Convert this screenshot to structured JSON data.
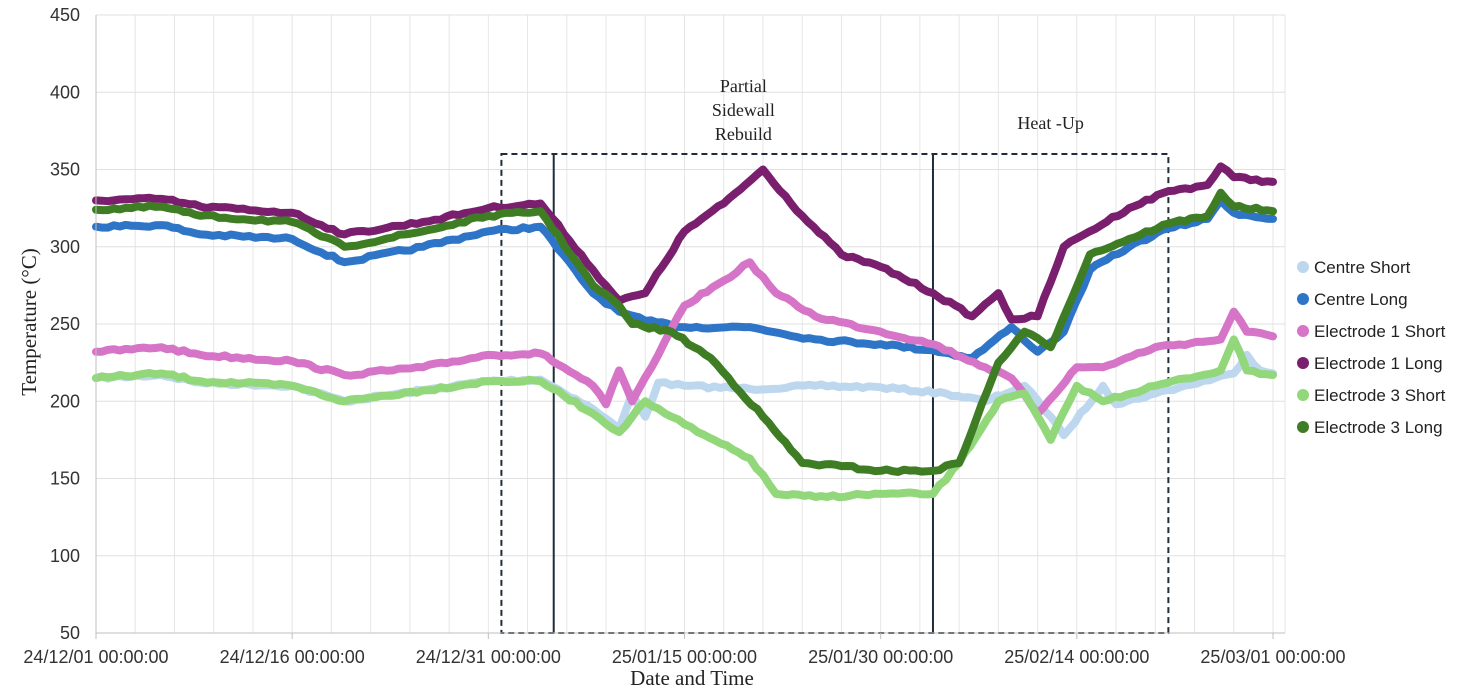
{
  "chart_data": {
    "type": "line",
    "title": "",
    "xlabel": "Date and Time",
    "ylabel": "Temperature (°C)",
    "ylim": [
      50,
      450
    ],
    "yticks": [
      50,
      100,
      150,
      200,
      250,
      300,
      350,
      400,
      450
    ],
    "xlim": [
      "2024-12-01",
      "2025-03-01"
    ],
    "xticks": [
      {
        "date": "2024-12-01",
        "label": "24/12/01 00:00:00"
      },
      {
        "date": "2024-12-16",
        "label": "24/12/16 00:00:00"
      },
      {
        "date": "2024-12-31",
        "label": "24/12/31 00:00:00"
      },
      {
        "date": "2025-01-15",
        "label": "25/01/15 00:00:00"
      },
      {
        "date": "2025-01-30",
        "label": "25/01/30 00:00:00"
      },
      {
        "date": "2025-02-14",
        "label": "25/02/14 00:00:00"
      },
      {
        "date": "2025-03-01",
        "label": "25/03/01 00:00:00"
      }
    ],
    "grid": true,
    "legend": "right",
    "colors": {
      "Centre Short": "#bdd7ee",
      "Centre Long": "#2e75c8",
      "Electrode 1 Short": "#d674c8",
      "Electrode 1 Long": "#7a1f6e",
      "Electrode 3 Short": "#92d77a",
      "Electrode 3 Long": "#3e7d24"
    },
    "annotations": [
      {
        "lines": [
          "Partial",
          "Sidewall",
          "Rebuild"
        ],
        "x_start": "2025-01-05",
        "x_end": "2025-02-03"
      },
      {
        "lines": [
          "Heat -Up"
        ],
        "x_start": "2025-02-03",
        "x_end": "2025-02-21"
      }
    ],
    "outer_box": {
      "x_start": "2025-01-01",
      "x_end": "2025-02-21",
      "y_range": [
        50,
        360
      ]
    },
    "series": [
      {
        "name": "Centre Short",
        "points": [
          [
            "2024-12-01",
            215
          ],
          [
            "2024-12-06",
            217
          ],
          [
            "2024-12-09",
            212
          ],
          [
            "2024-12-16",
            210
          ],
          [
            "2024-12-20",
            200
          ],
          [
            "2024-12-26",
            207
          ],
          [
            "2024-12-31",
            213
          ],
          [
            "2025-01-04",
            214
          ],
          [
            "2025-01-08",
            195
          ],
          [
            "2025-01-10",
            182
          ],
          [
            "2025-01-11",
            205
          ],
          [
            "2025-01-12",
            190
          ],
          [
            "2025-01-13",
            212
          ],
          [
            "2025-01-15",
            210
          ],
          [
            "2025-01-20",
            208
          ],
          [
            "2025-01-25",
            210
          ],
          [
            "2025-01-30",
            209
          ],
          [
            "2025-02-04",
            205
          ],
          [
            "2025-02-07",
            200
          ],
          [
            "2025-02-10",
            210
          ],
          [
            "2025-02-12",
            190
          ],
          [
            "2025-02-13",
            178
          ],
          [
            "2025-02-16",
            210
          ],
          [
            "2025-02-17",
            198
          ],
          [
            "2025-02-20",
            205
          ],
          [
            "2025-02-26",
            218
          ],
          [
            "2025-02-27",
            230
          ],
          [
            "2025-02-28",
            220
          ],
          [
            "2025-03-01",
            218
          ]
        ]
      },
      {
        "name": "Centre Long",
        "points": [
          [
            "2024-12-01",
            313
          ],
          [
            "2024-12-06",
            314
          ],
          [
            "2024-12-09",
            308
          ],
          [
            "2024-12-16",
            305
          ],
          [
            "2024-12-20",
            290
          ],
          [
            "2024-12-26",
            300
          ],
          [
            "2024-12-31",
            310
          ],
          [
            "2025-01-04",
            313
          ],
          [
            "2025-01-08",
            270
          ],
          [
            "2025-01-10",
            258
          ],
          [
            "2025-01-12",
            252
          ],
          [
            "2025-01-15",
            248
          ],
          [
            "2025-01-20",
            248
          ],
          [
            "2025-01-25",
            240
          ],
          [
            "2025-01-30",
            237
          ],
          [
            "2025-02-03",
            233
          ],
          [
            "2025-02-06",
            228
          ],
          [
            "2025-02-09",
            248
          ],
          [
            "2025-02-11",
            232
          ],
          [
            "2025-02-13",
            245
          ],
          [
            "2025-02-15",
            285
          ],
          [
            "2025-02-18",
            300
          ],
          [
            "2025-02-21",
            312
          ],
          [
            "2025-02-24",
            318
          ],
          [
            "2025-02-25",
            330
          ],
          [
            "2025-02-26",
            322
          ],
          [
            "2025-03-01",
            318
          ]
        ]
      },
      {
        "name": "Electrode 1 Short",
        "points": [
          [
            "2024-12-01",
            232
          ],
          [
            "2024-12-06",
            235
          ],
          [
            "2024-12-09",
            230
          ],
          [
            "2024-12-16",
            226
          ],
          [
            "2024-12-20",
            217
          ],
          [
            "2024-12-26",
            222
          ],
          [
            "2024-12-31",
            230
          ],
          [
            "2025-01-04",
            231
          ],
          [
            "2025-01-08",
            210
          ],
          [
            "2025-01-09",
            198
          ],
          [
            "2025-01-10",
            220
          ],
          [
            "2025-01-11",
            200
          ],
          [
            "2025-01-13",
            230
          ],
          [
            "2025-01-15",
            262
          ],
          [
            "2025-01-18",
            278
          ],
          [
            "2025-01-20",
            290
          ],
          [
            "2025-01-22",
            270
          ],
          [
            "2025-01-25",
            255
          ],
          [
            "2025-01-30",
            245
          ],
          [
            "2025-02-03",
            237
          ],
          [
            "2025-02-07",
            222
          ],
          [
            "2025-02-09",
            215
          ],
          [
            "2025-02-11",
            192
          ],
          [
            "2025-02-14",
            222
          ],
          [
            "2025-02-16",
            222
          ],
          [
            "2025-02-20",
            235
          ],
          [
            "2025-02-25",
            240
          ],
          [
            "2025-02-26",
            258
          ],
          [
            "2025-02-27",
            245
          ],
          [
            "2025-03-01",
            242
          ]
        ]
      },
      {
        "name": "Electrode 1 Long",
        "points": [
          [
            "2024-12-01",
            330
          ],
          [
            "2024-12-06",
            331
          ],
          [
            "2024-12-09",
            326
          ],
          [
            "2024-12-16",
            322
          ],
          [
            "2024-12-20",
            308
          ],
          [
            "2024-12-26",
            316
          ],
          [
            "2024-12-31",
            325
          ],
          [
            "2025-01-04",
            328
          ],
          [
            "2025-01-08",
            285
          ],
          [
            "2025-01-10",
            265
          ],
          [
            "2025-01-12",
            270
          ],
          [
            "2025-01-15",
            310
          ],
          [
            "2025-01-18",
            328
          ],
          [
            "2025-01-21",
            350
          ],
          [
            "2025-01-24",
            320
          ],
          [
            "2025-01-27",
            295
          ],
          [
            "2025-01-30",
            287
          ],
          [
            "2025-02-03",
            270
          ],
          [
            "2025-02-06",
            255
          ],
          [
            "2025-02-08",
            270
          ],
          [
            "2025-02-09",
            253
          ],
          [
            "2025-02-11",
            255
          ],
          [
            "2025-02-13",
            300
          ],
          [
            "2025-02-15",
            310
          ],
          [
            "2025-02-18",
            325
          ],
          [
            "2025-02-21",
            336
          ],
          [
            "2025-02-24",
            340
          ],
          [
            "2025-02-25",
            352
          ],
          [
            "2025-02-26",
            345
          ],
          [
            "2025-03-01",
            342
          ]
        ]
      },
      {
        "name": "Electrode 3 Short",
        "points": [
          [
            "2024-12-01",
            215
          ],
          [
            "2024-12-06",
            218
          ],
          [
            "2024-12-09",
            213
          ],
          [
            "2024-12-16",
            210
          ],
          [
            "2024-12-20",
            200
          ],
          [
            "2024-12-26",
            207
          ],
          [
            "2024-12-31",
            213
          ],
          [
            "2025-01-04",
            213
          ],
          [
            "2025-01-08",
            192
          ],
          [
            "2025-01-10",
            180
          ],
          [
            "2025-01-11",
            190
          ],
          [
            "2025-01-12",
            200
          ],
          [
            "2025-01-14",
            190
          ],
          [
            "2025-01-16",
            180
          ],
          [
            "2025-01-20",
            163
          ],
          [
            "2025-01-22",
            140
          ],
          [
            "2025-01-25",
            138
          ],
          [
            "2025-01-30",
            140
          ],
          [
            "2025-02-03",
            140
          ],
          [
            "2025-02-05",
            160
          ],
          [
            "2025-02-08",
            200
          ],
          [
            "2025-02-10",
            205
          ],
          [
            "2025-02-12",
            175
          ],
          [
            "2025-02-14",
            210
          ],
          [
            "2025-02-16",
            200
          ],
          [
            "2025-02-20",
            210
          ],
          [
            "2025-02-25",
            220
          ],
          [
            "2025-02-26",
            240
          ],
          [
            "2025-02-27",
            220
          ],
          [
            "2025-03-01",
            217
          ]
        ]
      },
      {
        "name": "Electrode 3 Long",
        "points": [
          [
            "2024-12-01",
            324
          ],
          [
            "2024-12-06",
            326
          ],
          [
            "2024-12-09",
            320
          ],
          [
            "2024-12-16",
            316
          ],
          [
            "2024-12-20",
            300
          ],
          [
            "2024-12-26",
            310
          ],
          [
            "2024-12-31",
            320
          ],
          [
            "2025-01-04",
            323
          ],
          [
            "2025-01-08",
            275
          ],
          [
            "2025-01-10",
            262
          ],
          [
            "2025-01-11",
            250
          ],
          [
            "2025-01-14",
            245
          ],
          [
            "2025-01-17",
            228
          ],
          [
            "2025-01-21",
            190
          ],
          [
            "2025-01-24",
            160
          ],
          [
            "2025-01-27",
            158
          ],
          [
            "2025-01-30",
            155
          ],
          [
            "2025-02-03",
            155
          ],
          [
            "2025-02-05",
            160
          ],
          [
            "2025-02-08",
            225
          ],
          [
            "2025-02-10",
            245
          ],
          [
            "2025-02-12",
            235
          ],
          [
            "2025-02-15",
            295
          ],
          [
            "2025-02-18",
            305
          ],
          [
            "2025-02-21",
            315
          ],
          [
            "2025-02-24",
            320
          ],
          [
            "2025-02-25",
            335
          ],
          [
            "2025-02-26",
            326
          ],
          [
            "2025-03-01",
            323
          ]
        ]
      }
    ]
  }
}
